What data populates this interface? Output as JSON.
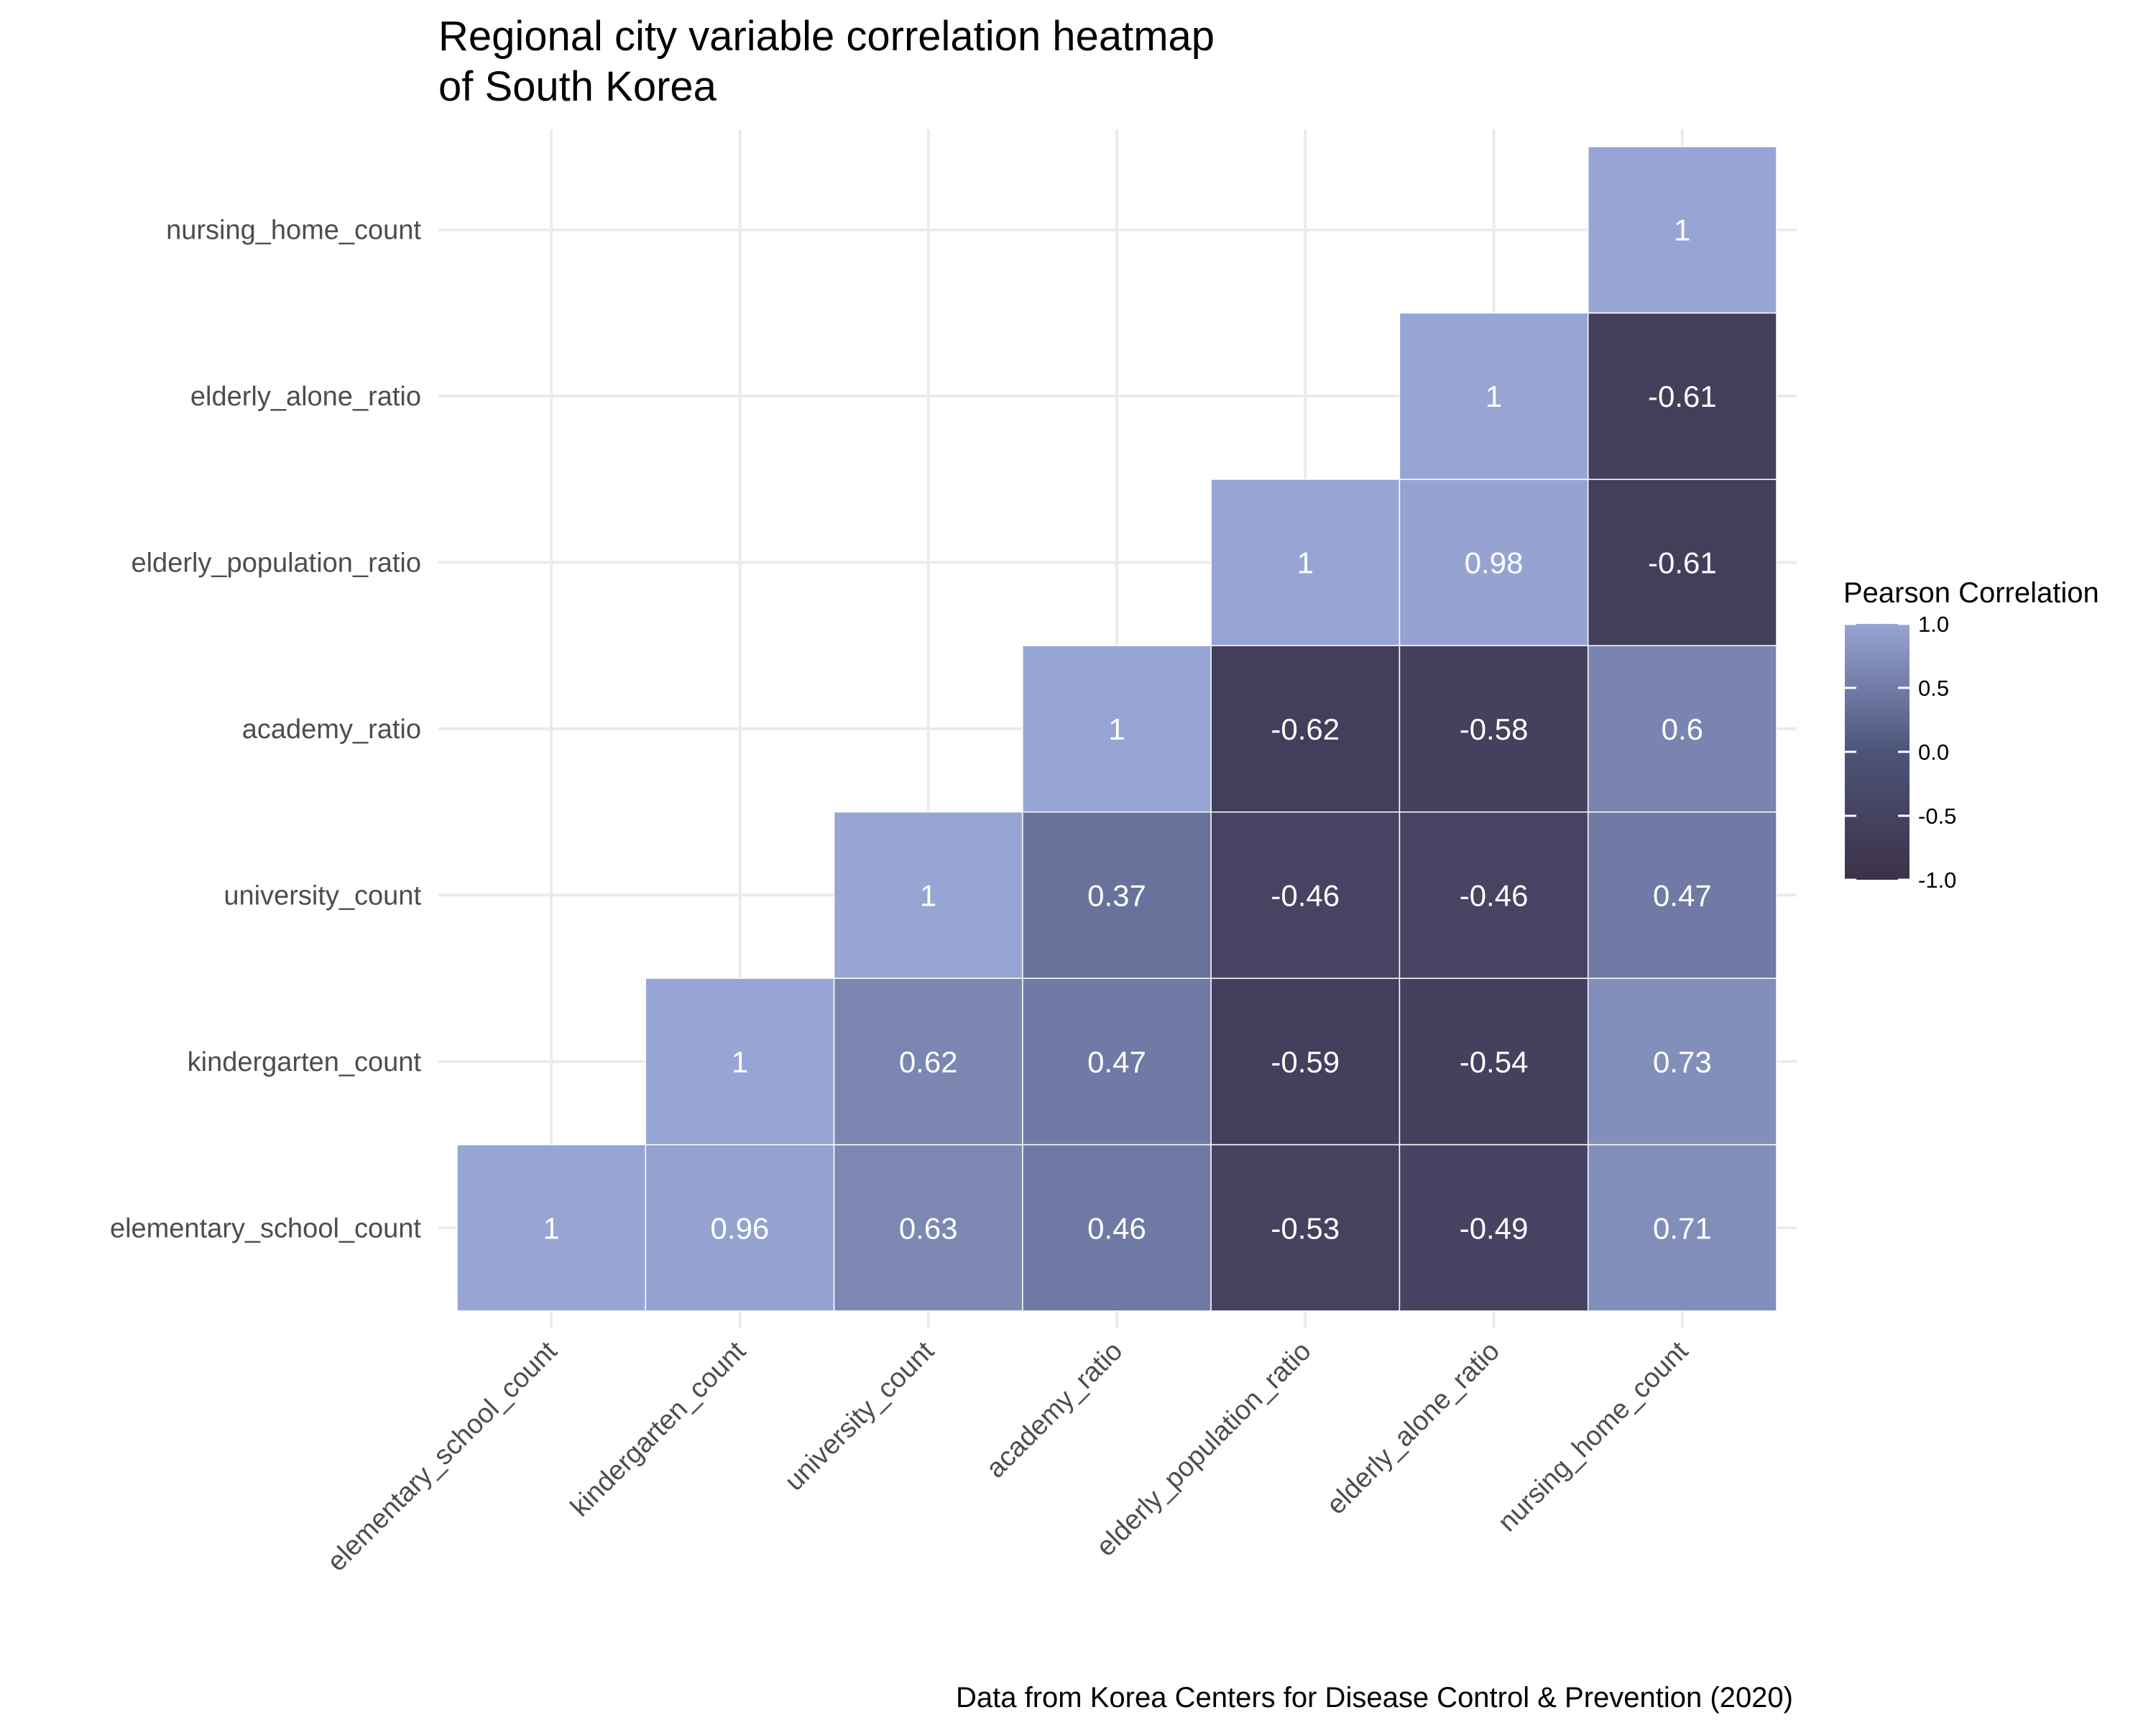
{
  "chart_data": {
    "type": "heatmap",
    "title_lines": [
      "Regional city variable correlation heatmap",
      "of South Korea"
    ],
    "caption": "Data from Korea Centers for Disease Control & Prevention (2020)",
    "variables": [
      "elementary_school_count",
      "kindergarten_count",
      "university_count",
      "academy_ratio",
      "elderly_population_ratio",
      "elderly_alone_ratio",
      "nursing_home_count"
    ],
    "cells": [
      {
        "x": "elementary_school_count",
        "y": "elementary_school_count",
        "value": 1,
        "label": "1"
      },
      {
        "x": "kindergarten_count",
        "y": "elementary_school_count",
        "value": 0.96,
        "label": "0.96"
      },
      {
        "x": "university_count",
        "y": "elementary_school_count",
        "value": 0.63,
        "label": "0.63"
      },
      {
        "x": "academy_ratio",
        "y": "elementary_school_count",
        "value": 0.46,
        "label": "0.46"
      },
      {
        "x": "elderly_population_ratio",
        "y": "elementary_school_count",
        "value": -0.53,
        "label": "-0.53"
      },
      {
        "x": "elderly_alone_ratio",
        "y": "elementary_school_count",
        "value": -0.49,
        "label": "-0.49"
      },
      {
        "x": "nursing_home_count",
        "y": "elementary_school_count",
        "value": 0.71,
        "label": "0.71"
      },
      {
        "x": "kindergarten_count",
        "y": "kindergarten_count",
        "value": 1,
        "label": "1"
      },
      {
        "x": "university_count",
        "y": "kindergarten_count",
        "value": 0.62,
        "label": "0.62"
      },
      {
        "x": "academy_ratio",
        "y": "kindergarten_count",
        "value": 0.47,
        "label": "0.47"
      },
      {
        "x": "elderly_population_ratio",
        "y": "kindergarten_count",
        "value": -0.59,
        "label": "-0.59"
      },
      {
        "x": "elderly_alone_ratio",
        "y": "kindergarten_count",
        "value": -0.54,
        "label": "-0.54"
      },
      {
        "x": "nursing_home_count",
        "y": "kindergarten_count",
        "value": 0.73,
        "label": "0.73"
      },
      {
        "x": "university_count",
        "y": "university_count",
        "value": 1,
        "label": "1"
      },
      {
        "x": "academy_ratio",
        "y": "university_count",
        "value": 0.37,
        "label": "0.37"
      },
      {
        "x": "elderly_population_ratio",
        "y": "university_count",
        "value": -0.46,
        "label": "-0.46"
      },
      {
        "x": "elderly_alone_ratio",
        "y": "university_count",
        "value": -0.46,
        "label": "-0.46"
      },
      {
        "x": "nursing_home_count",
        "y": "university_count",
        "value": 0.47,
        "label": "0.47"
      },
      {
        "x": "academy_ratio",
        "y": "academy_ratio",
        "value": 1,
        "label": "1"
      },
      {
        "x": "elderly_population_ratio",
        "y": "academy_ratio",
        "value": -0.62,
        "label": "-0.62"
      },
      {
        "x": "elderly_alone_ratio",
        "y": "academy_ratio",
        "value": -0.58,
        "label": "-0.58"
      },
      {
        "x": "nursing_home_count",
        "y": "academy_ratio",
        "value": 0.6,
        "label": "0.6"
      },
      {
        "x": "elderly_population_ratio",
        "y": "elderly_population_ratio",
        "value": 1,
        "label": "1"
      },
      {
        "x": "elderly_alone_ratio",
        "y": "elderly_population_ratio",
        "value": 0.98,
        "label": "0.98"
      },
      {
        "x": "nursing_home_count",
        "y": "elderly_population_ratio",
        "value": -0.61,
        "label": "-0.61"
      },
      {
        "x": "elderly_alone_ratio",
        "y": "elderly_alone_ratio",
        "value": 1,
        "label": "1"
      },
      {
        "x": "nursing_home_count",
        "y": "elderly_alone_ratio",
        "value": -0.61,
        "label": "-0.61"
      },
      {
        "x": "nursing_home_count",
        "y": "nursing_home_count",
        "value": 1,
        "label": "1"
      }
    ],
    "legend": {
      "title": "Pearson Correlation",
      "range": [
        -1,
        1
      ],
      "ticks": [
        {
          "value": 1,
          "label": "1.0"
        },
        {
          "value": 0.5,
          "label": "0.5"
        },
        {
          "value": 0,
          "label": "0.0"
        },
        {
          "value": -0.5,
          "label": "-0.5"
        },
        {
          "value": -1,
          "label": "-1.0"
        }
      ],
      "placement": "right"
    },
    "colors": {
      "low": "#3d3148",
      "mid": "#4d5479",
      "high": "#97a5d4",
      "grid": "#ebebeb",
      "cell_border": "#ffffff",
      "cell_text": "#ffffff"
    }
  }
}
